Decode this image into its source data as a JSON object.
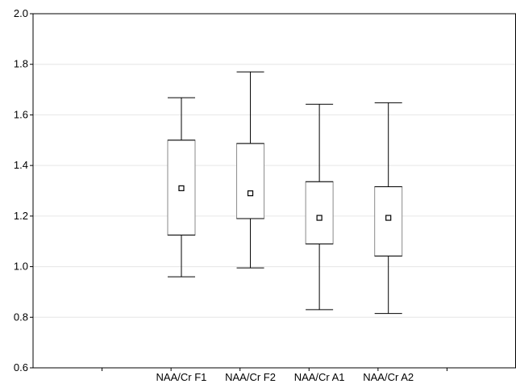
{
  "chart_data": {
    "type": "box",
    "title": "",
    "xlabel": "",
    "ylabel": "",
    "ylim": [
      0.6,
      2.0
    ],
    "yticks": [
      "0.6",
      "0.8",
      "1.0",
      "1.2",
      "1.4",
      "1.6",
      "1.8",
      "2.0"
    ],
    "grid": true,
    "categories": [
      "NAA/Cr F1",
      "NAA/Cr F2",
      "NAA/Cr A1",
      "NAA/Cr A2"
    ],
    "boxes": [
      {
        "category": "NAA/Cr F1",
        "whisker_low": 0.96,
        "box_low": 1.125,
        "mean": 1.31,
        "box_high": 1.5,
        "whisker_high": 1.668
      },
      {
        "category": "NAA/Cr F2",
        "whisker_low": 0.995,
        "box_low": 1.19,
        "mean": 1.29,
        "box_high": 1.487,
        "whisker_high": 1.77
      },
      {
        "category": "NAA/Cr A1",
        "whisker_low": 0.83,
        "box_low": 1.09,
        "mean": 1.193,
        "box_high": 1.336,
        "whisker_high": 1.642
      },
      {
        "category": "NAA/Cr A2",
        "whisker_low": 0.815,
        "box_low": 1.042,
        "mean": 1.193,
        "box_high": 1.316,
        "whisker_high": 1.648
      }
    ]
  }
}
